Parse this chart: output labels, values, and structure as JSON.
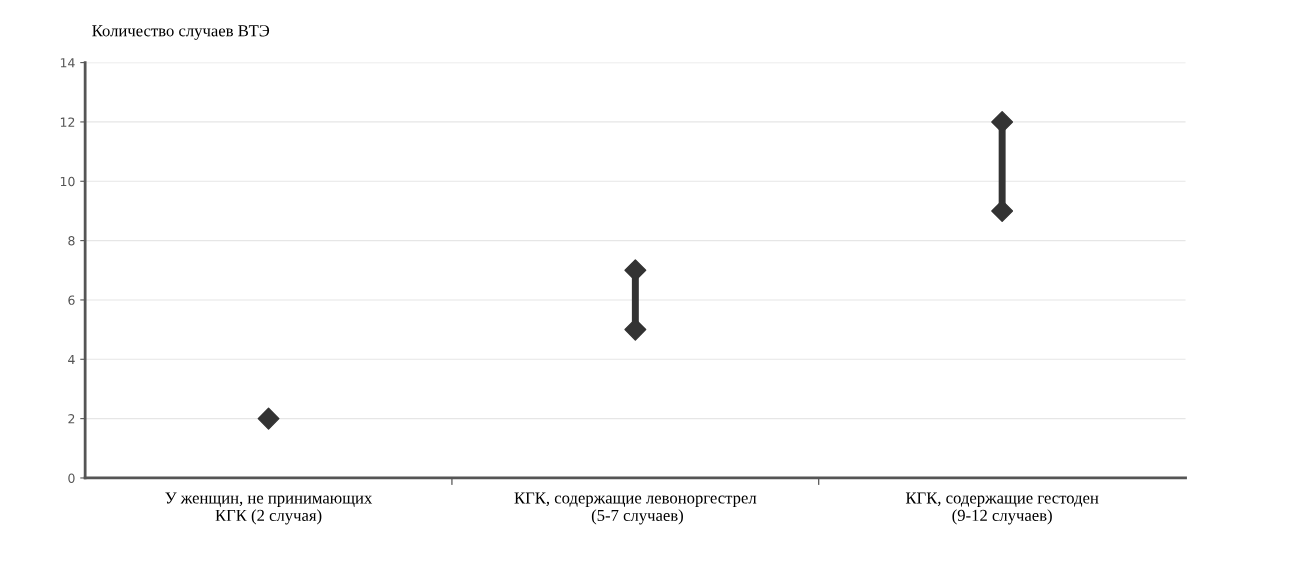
{
  "chart_data": {
    "type": "scatter",
    "ylabel": "Количество случаев ВТЭ",
    "categories": [
      "У женщин, не принимающих\nКГК (2 случая)",
      "КГК, содержащие левоноргестрел\n (5-7 случаев)",
      "КГК, содержащие гестоден\n(9-12 случаев)"
    ],
    "series": [
      {
        "color": "#333333",
        "values": [
          2,
          5,
          9
        ]
      },
      {
        "color": "#333333",
        "values": [
          null,
          7,
          12
        ]
      }
    ],
    "marker": "diamond",
    "ylim": [
      0,
      14
    ],
    "yticks": [
      0,
      2,
      4,
      6,
      8,
      10,
      12,
      14
    ],
    "grid": "y"
  }
}
